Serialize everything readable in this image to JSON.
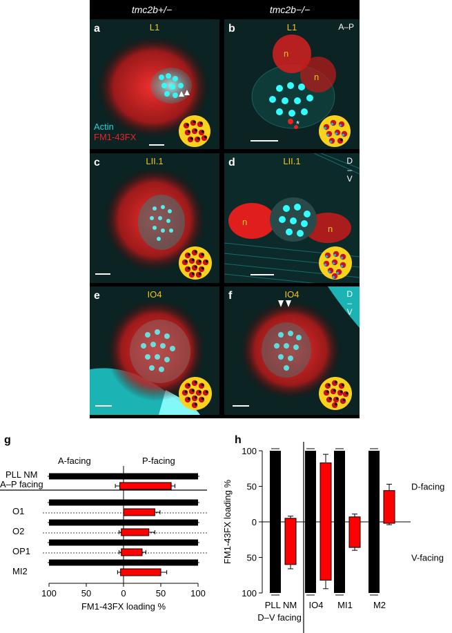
{
  "header": {
    "col_left": "tmc2b+/−",
    "col_right": "tmc2b−/−"
  },
  "panels": [
    {
      "id": "a",
      "letter": "a",
      "region": "L1",
      "orientation": "",
      "legend": [
        "Actin",
        "FM1-43FX"
      ],
      "n_labels": []
    },
    {
      "id": "b",
      "letter": "b",
      "region": "L1",
      "orientation": "A–P",
      "legend": [],
      "n_labels": [
        "n",
        "n"
      ],
      "asterisk": "*"
    },
    {
      "id": "c",
      "letter": "c",
      "region": "LII.1",
      "orientation": "",
      "legend": [],
      "n_labels": []
    },
    {
      "id": "d",
      "letter": "d",
      "region": "LII.1",
      "orientation": "D\n–\nV",
      "legend": [],
      "n_labels": [
        "n",
        "n"
      ]
    },
    {
      "id": "e",
      "letter": "e",
      "region": "IO4",
      "orientation": "",
      "legend": [],
      "n_labels": []
    },
    {
      "id": "f",
      "letter": "f",
      "region": "IO4",
      "orientation": "D\n–\nV",
      "legend": [],
      "n_labels": []
    }
  ],
  "colors": {
    "actin": "#22d3d3",
    "fm": "#ee2222",
    "inset": "#f8d21c",
    "black": "#000000",
    "red_bar": "#ff0000"
  },
  "chart_g": {
    "letter": "g",
    "headings": {
      "left": "A-facing",
      "right": "P-facing"
    },
    "category_label_line2": "A–P facing",
    "xlabel": "FM1-43FX loading %",
    "tick_labels": [
      "100",
      "50",
      "0",
      "50",
      "100"
    ]
  },
  "chart_h": {
    "letter": "h",
    "ylabel": "FM1-43FX loading %",
    "tick_labels": [
      "100",
      "50",
      "0",
      "50",
      "100"
    ],
    "right_labels": [
      "D-facing",
      "V-facing"
    ],
    "category_labels": [
      "PLL NM",
      "IO4",
      "MI1",
      "M2"
    ],
    "category_label_line2": "D–V facing"
  },
  "chart_data": [
    {
      "type": "bar",
      "title": "",
      "xlabel": "FM1-43FX loading %",
      "categories": [
        "PLL NM",
        "O1",
        "O2",
        "OP1",
        "MI2"
      ],
      "xlim": [
        -100,
        100
      ],
      "series": [
        {
          "name": "tmc2b+/−",
          "values_A": [
            100,
            100,
            100,
            100,
            100
          ],
          "values_P": [
            100,
            100,
            100,
            100,
            100
          ]
        },
        {
          "name": "tmc2b−/−",
          "values_A": [
            5,
            0,
            3,
            3,
            4
          ],
          "values_P": [
            64,
            42,
            34,
            25,
            50
          ],
          "err_A": [
            6,
            0,
            3,
            3,
            4
          ],
          "err_P": [
            5,
            7,
            8,
            5,
            8
          ]
        }
      ]
    },
    {
      "type": "bar",
      "title": "",
      "ylabel": "FM1-43FX loading %",
      "categories": [
        "PLL NM",
        "IO4",
        "MI1",
        "M2"
      ],
      "ylim": [
        -100,
        100
      ],
      "series": [
        {
          "name": "tmc2b+/−",
          "values_D": [
            100,
            100,
            100,
            100
          ],
          "values_V": [
            100,
            100,
            100,
            100
          ]
        },
        {
          "name": "tmc2b−/−",
          "values_D": [
            5,
            83,
            7,
            44
          ],
          "values_V": [
            60,
            82,
            36,
            2
          ],
          "err_D": [
            3,
            12,
            4,
            9
          ],
          "err_V": [
            6,
            12,
            4,
            2
          ]
        }
      ]
    }
  ]
}
